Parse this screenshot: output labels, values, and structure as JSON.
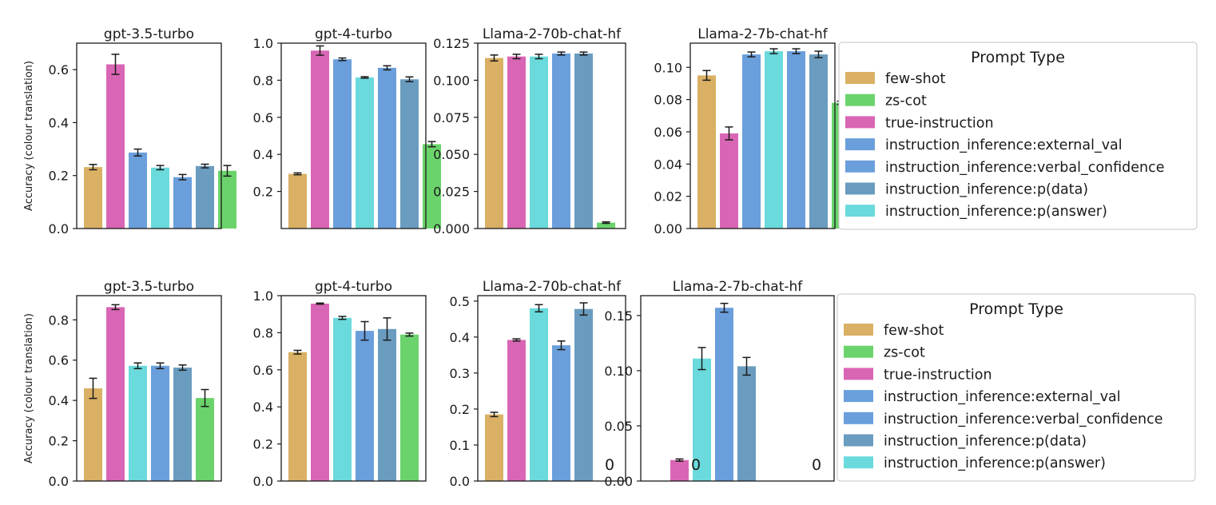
{
  "figure": {
    "ylabel": "Accuracy (colour translation)"
  },
  "colors": {
    "few-shot": "#D9B064",
    "zs-cot": "#6BD36B",
    "true-instruction": "#D966B5",
    "instruction_inference:external_val": "#6A9FDC",
    "instruction_inference:verbal_confidence": "#6A9FDC",
    "instruction_inference:p(data)": "#6A9CBF",
    "instruction_inference:p(answer)": "#6ADADC"
  },
  "legends": [
    {
      "title": "Prompt Type",
      "entries": [
        "few-shot",
        "zs-cot",
        "true-instruction",
        "instruction_inference:external_val",
        "instruction_inference:verbal_confidence",
        "instruction_inference:p(data)",
        "instruction_inference:p(answer)"
      ]
    },
    {
      "title": "Prompt Type",
      "entries": [
        "few-shot",
        "zs-cot",
        "true-instruction",
        "instruction_inference:external_val",
        "instruction_inference:verbal_confidence",
        "instruction_inference:p(data)",
        "instruction_inference:p(answer)"
      ]
    }
  ],
  "chart_data": [
    {
      "type": "bar",
      "row": 0,
      "title": "gpt-3.5-turbo",
      "ylabel": "Accuracy (colour translation)",
      "ylim": [
        0,
        0.7
      ],
      "yticks": [
        0.0,
        0.2,
        0.4,
        0.6
      ],
      "ytick_labels": [
        "0.0",
        "0.2",
        "0.4",
        "0.6"
      ],
      "bars": [
        {
          "category": "few-shot",
          "value": 0.232,
          "err": 0.01
        },
        {
          "category": "true-instruction",
          "value": 0.62,
          "err": 0.038
        },
        {
          "category": "instruction_inference:external_val",
          "value": 0.287,
          "err": 0.013
        },
        {
          "category": "instruction_inference:p(answer)",
          "value": 0.23,
          "err": 0.008
        },
        {
          "category": "instruction_inference:verbal_confidence",
          "value": 0.194,
          "err": 0.01
        },
        {
          "category": "instruction_inference:p(data)",
          "value": 0.236,
          "err": 0.007
        },
        {
          "category": "zs-cot",
          "value": 0.218,
          "err": 0.02
        }
      ],
      "zero_labels": []
    },
    {
      "type": "bar",
      "row": 0,
      "title": "gpt-4-turbo",
      "ylabel": "",
      "ylim": [
        0,
        1.0
      ],
      "yticks": [
        0.2,
        0.4,
        0.6,
        0.8,
        1.0
      ],
      "ytick_labels": [
        "0.2",
        "0.4",
        "0.6",
        "0.8",
        "1.0"
      ],
      "bars": [
        {
          "category": "few-shot",
          "value": 0.295,
          "err": 0.005
        },
        {
          "category": "true-instruction",
          "value": 0.96,
          "err": 0.025
        },
        {
          "category": "instruction_inference:external_val",
          "value": 0.913,
          "err": 0.007
        },
        {
          "category": "instruction_inference:p(answer)",
          "value": 0.815,
          "err": 0.004
        },
        {
          "category": "instruction_inference:verbal_confidence",
          "value": 0.867,
          "err": 0.011
        },
        {
          "category": "instruction_inference:p(data)",
          "value": 0.805,
          "err": 0.013
        },
        {
          "category": "zs-cot",
          "value": 0.455,
          "err": 0.014
        }
      ],
      "zero_labels": []
    },
    {
      "type": "bar",
      "row": 0,
      "title": "Llama-2-70b-chat-hf",
      "ylabel": "",
      "ylim": [
        0,
        0.125
      ],
      "yticks": [
        0.0,
        0.025,
        0.05,
        0.075,
        0.1,
        0.125
      ],
      "ytick_labels": [
        "0.000",
        "0.025",
        "0.050",
        "0.075",
        "0.100",
        "0.125"
      ],
      "bars": [
        {
          "category": "few-shot",
          "value": 0.115,
          "err": 0.002
        },
        {
          "category": "true-instruction",
          "value": 0.116,
          "err": 0.0015
        },
        {
          "category": "instruction_inference:p(answer)",
          "value": 0.116,
          "err": 0.0015
        },
        {
          "category": "instruction_inference:external_val",
          "value": 0.118,
          "err": 0.001
        },
        {
          "category": "instruction_inference:p(data)",
          "value": 0.118,
          "err": 0.001
        },
        {
          "category": "zs-cot",
          "value": 0.004,
          "err": 0.0005
        }
      ],
      "zero_labels": []
    },
    {
      "type": "bar",
      "row": 0,
      "title": "Llama-2-7b-chat-hf",
      "ylabel": "",
      "ylim": [
        0,
        0.115
      ],
      "yticks": [
        0.0,
        0.02,
        0.04,
        0.06,
        0.08,
        0.1
      ],
      "ytick_labels": [
        "0.00",
        "0.02",
        "0.04",
        "0.06",
        "0.08",
        "0.10"
      ],
      "bars": [
        {
          "category": "few-shot",
          "value": 0.095,
          "err": 0.003
        },
        {
          "category": "true-instruction",
          "value": 0.059,
          "err": 0.004
        },
        {
          "category": "instruction_inference:external_val",
          "value": 0.108,
          "err": 0.0015
        },
        {
          "category": "instruction_inference:p(answer)",
          "value": 0.11,
          "err": 0.0015
        },
        {
          "category": "instruction_inference:verbal_confidence",
          "value": 0.11,
          "err": 0.0015
        },
        {
          "category": "instruction_inference:p(data)",
          "value": 0.108,
          "err": 0.002
        },
        {
          "category": "zs-cot",
          "value": 0.078,
          "err": 0.001
        }
      ],
      "zero_labels": []
    },
    {
      "type": "bar",
      "row": 1,
      "title": "gpt-3.5-turbo",
      "ylabel": "Accuracy (colour translation)",
      "ylim": [
        0,
        0.92
      ],
      "yticks": [
        0.0,
        0.2,
        0.4,
        0.6,
        0.8
      ],
      "ytick_labels": [
        "0.0",
        "0.2",
        "0.4",
        "0.6",
        "0.8"
      ],
      "bars": [
        {
          "category": "few-shot",
          "value": 0.46,
          "err": 0.05
        },
        {
          "category": "true-instruction",
          "value": 0.863,
          "err": 0.012
        },
        {
          "category": "instruction_inference:p(answer)",
          "value": 0.572,
          "err": 0.014
        },
        {
          "category": "instruction_inference:external_val",
          "value": 0.572,
          "err": 0.014
        },
        {
          "category": "instruction_inference:p(data)",
          "value": 0.563,
          "err": 0.013
        },
        {
          "category": "zs-cot",
          "value": 0.412,
          "err": 0.042
        }
      ],
      "zero_labels": []
    },
    {
      "type": "bar",
      "row": 1,
      "title": "gpt-4-turbo",
      "ylabel": "",
      "ylim": [
        0,
        1.0
      ],
      "yticks": [
        0.0,
        0.2,
        0.4,
        0.6,
        0.8,
        1.0
      ],
      "ytick_labels": [
        "0.0",
        "0.2",
        "0.4",
        "0.6",
        "0.8",
        "1.0"
      ],
      "bars": [
        {
          "category": "few-shot",
          "value": 0.695,
          "err": 0.01
        },
        {
          "category": "true-instruction",
          "value": 0.957,
          "err": 0.003
        },
        {
          "category": "instruction_inference:p(answer)",
          "value": 0.88,
          "err": 0.008
        },
        {
          "category": "instruction_inference:external_val",
          "value": 0.81,
          "err": 0.05
        },
        {
          "category": "instruction_inference:p(data)",
          "value": 0.82,
          "err": 0.06
        },
        {
          "category": "zs-cot",
          "value": 0.79,
          "err": 0.008
        }
      ],
      "zero_labels": []
    },
    {
      "type": "bar",
      "row": 1,
      "title": "Llama-2-70b-chat-hf",
      "ylabel": "",
      "ylim": [
        0,
        0.515
      ],
      "yticks": [
        0.0,
        0.1,
        0.2,
        0.3,
        0.4,
        0.5
      ],
      "ytick_labels": [
        "0.0",
        "0.1",
        "0.2",
        "0.3",
        "0.4",
        "0.5"
      ],
      "bars": [
        {
          "category": "few-shot",
          "value": 0.185,
          "err": 0.006
        },
        {
          "category": "true-instruction",
          "value": 0.392,
          "err": 0.003
        },
        {
          "category": "instruction_inference:p(answer)",
          "value": 0.48,
          "err": 0.01
        },
        {
          "category": "instruction_inference:external_val",
          "value": 0.377,
          "err": 0.012
        },
        {
          "category": "instruction_inference:p(data)",
          "value": 0.478,
          "err": 0.017
        }
      ],
      "zero_labels": [
        "0"
      ]
    },
    {
      "type": "bar",
      "row": 1,
      "title": "Llama-2-7b-chat-hf",
      "ylabel": "",
      "ylim": [
        0,
        0.168
      ],
      "yticks": [
        0.0,
        0.05,
        0.1,
        0.15
      ],
      "ytick_labels": [
        "0.00",
        "0.05",
        "0.10",
        "0.15"
      ],
      "bars": [
        {
          "category": "few-shot",
          "value": 0,
          "err": 0
        },
        {
          "category": "true-instruction",
          "value": 0.019,
          "err": 0.001
        },
        {
          "category": "instruction_inference:p(answer)",
          "value": 0.111,
          "err": 0.01
        },
        {
          "category": "instruction_inference:external_val",
          "value": 0.157,
          "err": 0.004
        },
        {
          "category": "instruction_inference:p(data)",
          "value": 0.104,
          "err": 0.008
        }
      ],
      "zero_labels": [
        "0",
        "0"
      ]
    }
  ]
}
